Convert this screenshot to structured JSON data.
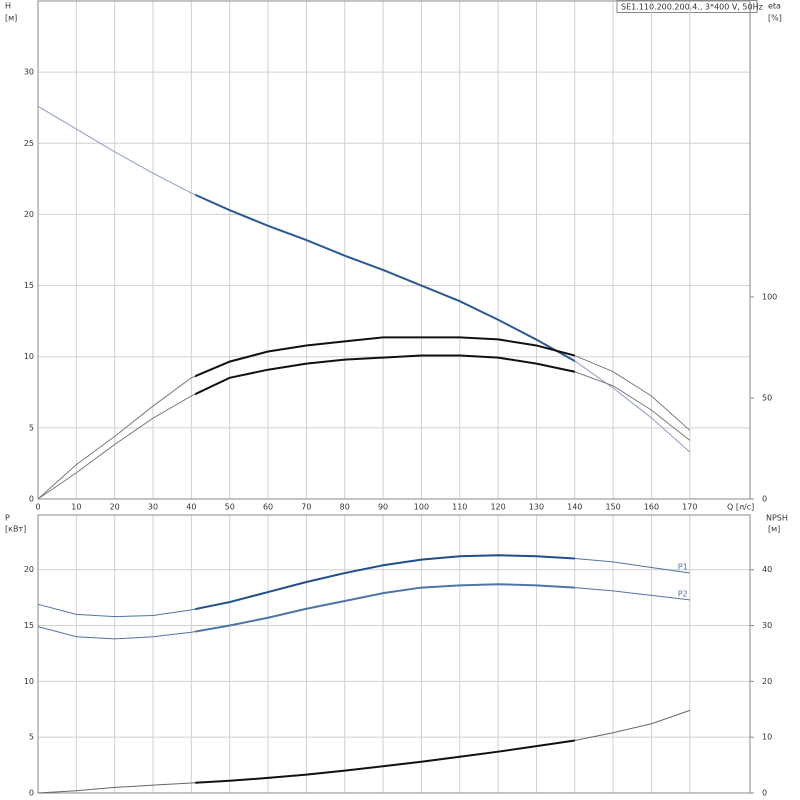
{
  "chart_data": [
    {
      "type": "line",
      "title": "SE1.110.200.200.4., 3*400 V, 50Hz",
      "y_label": "H",
      "y_unit": "[м]",
      "y2_label": "eta",
      "y2_unit": "[%]",
      "x_label": "Q [л/с]",
      "x": [
        0,
        10,
        20,
        30,
        40,
        50,
        60,
        70,
        80,
        90,
        100,
        110,
        120,
        130,
        140,
        150,
        160,
        170
      ],
      "xlim": [
        0,
        185.7
      ],
      "xticks": [
        0,
        10,
        20,
        30,
        40,
        50,
        60,
        70,
        80,
        90,
        100,
        110,
        120,
        130,
        140,
        150,
        160,
        170
      ],
      "ylim": [
        0,
        35
      ],
      "yticks": [
        0,
        5,
        10,
        15,
        20,
        25,
        30
      ],
      "y2lim": [
        0,
        246.5
      ],
      "y2ticks": [
        0,
        50,
        100
      ],
      "grid": true,
      "highlight_range": [
        41,
        140
      ],
      "series": [
        {
          "color": "#8c9cc4",
          "highlight_color": "#2a5a96",
          "values": [
            27.6,
            26.0,
            24.4,
            22.9,
            21.5,
            20.3,
            19.2,
            18.2,
            17.1,
            16.1,
            15.0,
            13.9,
            12.6,
            11.2,
            9.7,
            7.8,
            5.7,
            3.3
          ]
        },
        {
          "axis": "y2",
          "color": "#7a7a7a",
          "highlight_color": "#111111",
          "values": [
            0,
            17,
            31,
            46,
            60,
            68,
            73,
            76,
            78,
            80,
            80,
            80,
            79,
            76,
            71,
            63,
            51,
            34
          ]
        },
        {
          "axis": "y2",
          "color": "#7a7a7a",
          "highlight_color": "#111111",
          "values": [
            0,
            13,
            27,
            40,
            51,
            60,
            64,
            67,
            69,
            70,
            71,
            71,
            70,
            67,
            63,
            56,
            44,
            29
          ]
        }
      ]
    },
    {
      "type": "line",
      "y_label": "P",
      "y_unit": "[кВт]",
      "y2_label": "NPSH",
      "y2_unit": "[м]",
      "x": [
        0,
        10,
        20,
        30,
        40,
        50,
        60,
        70,
        80,
        90,
        100,
        110,
        120,
        130,
        140,
        150,
        160,
        170
      ],
      "xlim": [
        0,
        185.7
      ],
      "ylim": [
        0,
        24.9
      ],
      "yticks": [
        0,
        5,
        10,
        15,
        20
      ],
      "y2lim": [
        0,
        49.8
      ],
      "y2ticks": [
        0,
        10,
        20,
        30,
        40
      ],
      "grid": true,
      "highlight_range": [
        41,
        140
      ],
      "series": [
        {
          "name": "P1",
          "color": "#4f74a8",
          "highlight_color": "#1f4e8c",
          "values": [
            16.9,
            16.0,
            15.8,
            15.9,
            16.4,
            17.1,
            18.0,
            18.9,
            19.7,
            20.4,
            20.9,
            21.2,
            21.3,
            21.2,
            21.0,
            20.7,
            20.2,
            19.7
          ]
        },
        {
          "name": "P2",
          "color": "#4f74a8",
          "highlight_color": "#4f74a8",
          "values": [
            14.9,
            14.0,
            13.8,
            14.0,
            14.4,
            15.0,
            15.7,
            16.5,
            17.2,
            17.9,
            18.4,
            18.6,
            18.7,
            18.6,
            18.4,
            18.1,
            17.7,
            17.3
          ]
        },
        {
          "axis": "y2",
          "color": "#666666",
          "highlight_color": "#111111",
          "values": [
            0,
            0.4,
            1.0,
            1.4,
            1.8,
            2.2,
            2.7,
            3.3,
            4.0,
            4.8,
            5.6,
            6.5,
            7.4,
            8.4,
            9.4,
            10.8,
            12.4,
            14.8
          ]
        }
      ]
    }
  ]
}
